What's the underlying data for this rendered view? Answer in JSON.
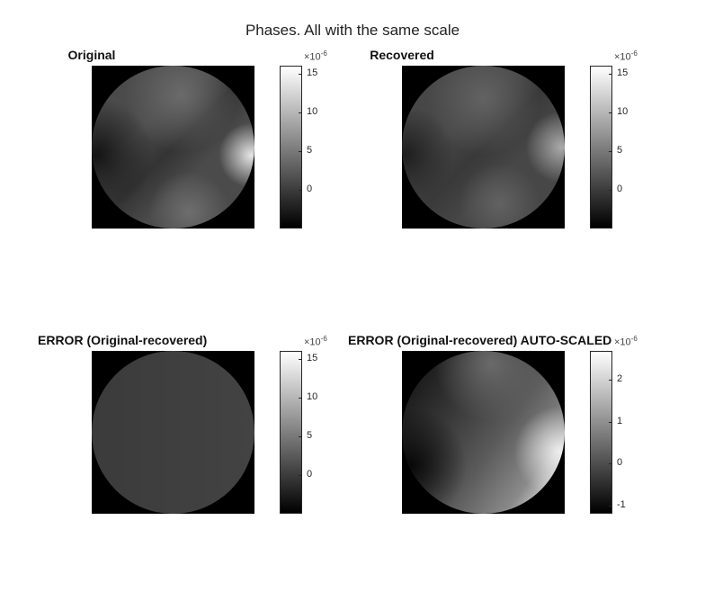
{
  "figure": {
    "title": "Phases. All with the same scale"
  },
  "chart_data": [
    {
      "type": "heatmap",
      "title": "Original",
      "colormap": "gray",
      "clim": [
        -5,
        16
      ],
      "colorbar": {
        "ticks": [
          0,
          5,
          10,
          15
        ],
        "tick_labels": [
          "0",
          "5",
          "10",
          "15"
        ],
        "exponent_label": "×10",
        "exponent": "-6"
      },
      "shading": "pattern-a"
    },
    {
      "type": "heatmap",
      "title": "Recovered",
      "colormap": "gray",
      "clim": [
        -5,
        16
      ],
      "colorbar": {
        "ticks": [
          0,
          5,
          10,
          15
        ],
        "tick_labels": [
          "0",
          "5",
          "10",
          "15"
        ],
        "exponent_label": "×10",
        "exponent": "-6"
      },
      "shading": "pattern-b"
    },
    {
      "type": "heatmap",
      "title": "ERROR (Original-recovered)",
      "colormap": "gray",
      "clim": [
        -5,
        16
      ],
      "colorbar": {
        "ticks": [
          0,
          5,
          10,
          15
        ],
        "tick_labels": [
          "0",
          "5",
          "10",
          "15"
        ],
        "exponent_label": "×10",
        "exponent": "-6"
      },
      "shading": "uniform"
    },
    {
      "type": "heatmap",
      "title": "ERROR (Original-recovered) AUTO-SCALED",
      "colormap": "gray",
      "clim": [
        -1.2,
        2.7
      ],
      "colorbar": {
        "ticks": [
          -1,
          0,
          1,
          2
        ],
        "tick_labels": [
          "-1",
          "0",
          "1",
          "2"
        ],
        "exponent_label": "×10",
        "exponent": "-6"
      },
      "shading": "gradient"
    }
  ]
}
